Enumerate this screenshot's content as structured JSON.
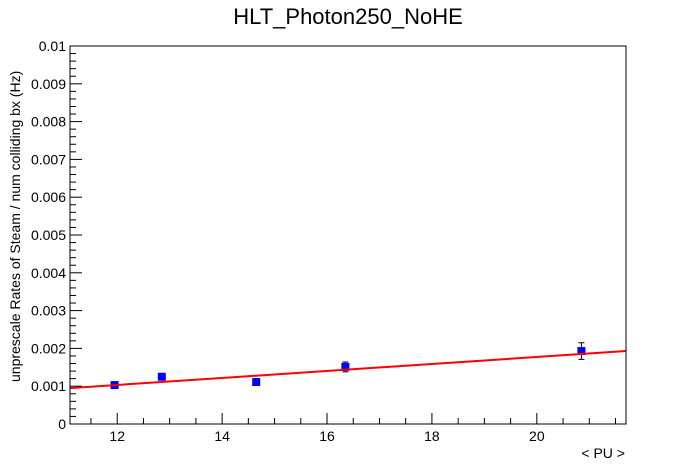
{
  "chart_data": {
    "type": "scatter",
    "title": "HLT_Photon250_NoHE",
    "xlabel": "< PU >",
    "ylabel": "unprescale Rates of Steam / num colliding bx (Hz)",
    "xlim": [
      11.1,
      21.7
    ],
    "ylim": [
      0,
      0.01
    ],
    "x_ticks": [
      12,
      14,
      16,
      18,
      20
    ],
    "x_tick_labels": [
      "12",
      "14",
      "16",
      "18",
      "20"
    ],
    "y_ticks": [
      0,
      0.001,
      0.002,
      0.003,
      0.004,
      0.005,
      0.006,
      0.007,
      0.008,
      0.009,
      0.01
    ],
    "y_tick_labels": [
      "0",
      "0.001",
      "0.002",
      "0.003",
      "0.004",
      "0.005",
      "0.006",
      "0.007",
      "0.008",
      "0.009",
      "0.01"
    ],
    "grid": false,
    "series": [
      {
        "type": "points",
        "color": "#0000ff",
        "x": [
          11.95,
          12.85,
          14.65,
          16.35,
          20.85
        ],
        "y": [
          0.00103,
          0.00125,
          0.00111,
          0.00151,
          0.00193
        ],
        "yerr": [
          5e-05,
          7e-05,
          5e-05,
          0.00013,
          0.00022
        ]
      },
      {
        "type": "line",
        "color": "#ff0000",
        "x": [
          11.1,
          21.7
        ],
        "y": [
          0.00095,
          0.00193
        ]
      }
    ]
  }
}
